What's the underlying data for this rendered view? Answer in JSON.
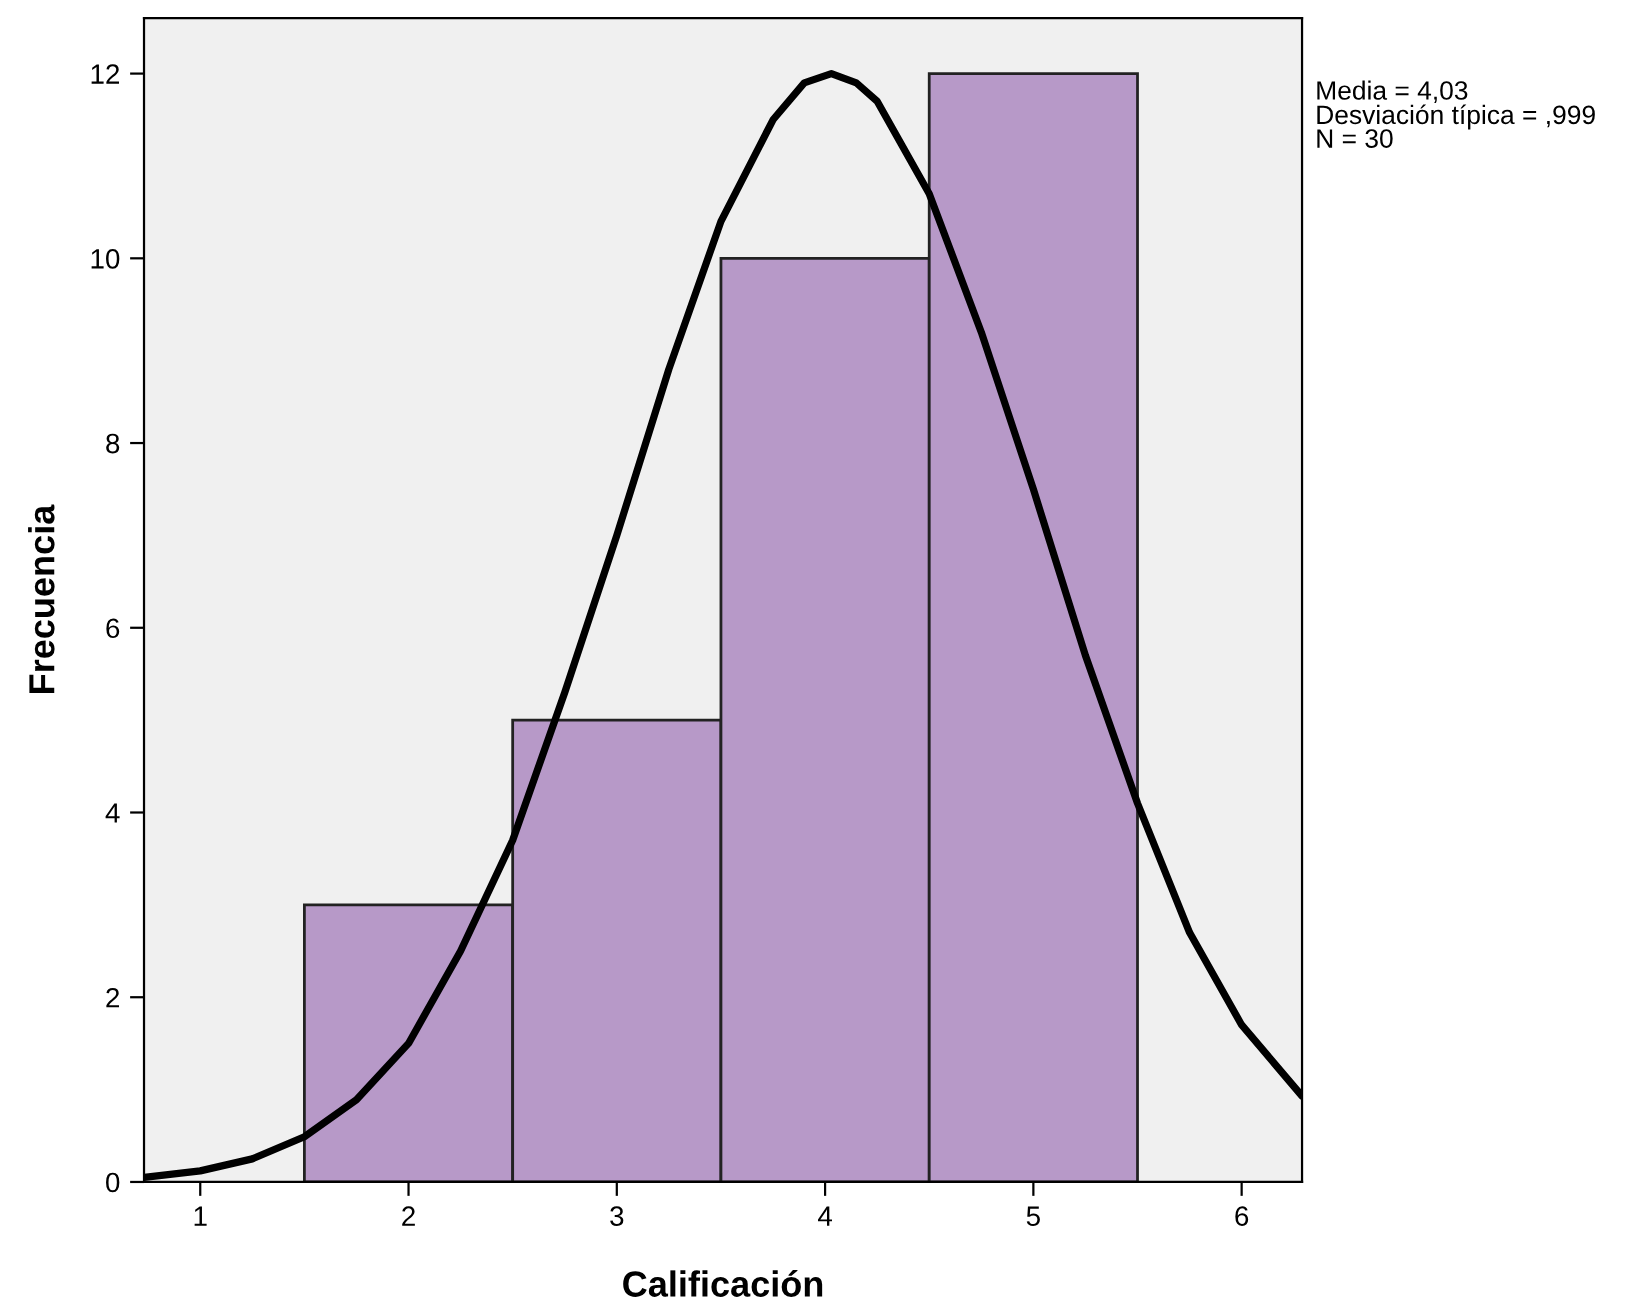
{
  "chart_data": {
    "type": "histogram",
    "xlabel": "Calificación",
    "ylabel": "Frecuencia",
    "annotations": [
      "Media = 4,03",
      "Desviación típica = ,999",
      "N = 30"
    ],
    "series": [
      {
        "bins": [
          1.5,
          2.5,
          3.5,
          4.5,
          5.5
        ],
        "values": [
          3,
          5,
          10,
          12
        ],
        "color": "#b799c8"
      },
      {
        "type": "line",
        "color": "#000000",
        "x": [
          0.73,
          1.0,
          1.25,
          1.5,
          1.75,
          2.0,
          2.25,
          2.5,
          2.75,
          3.0,
          3.25,
          3.5,
          3.75,
          3.9,
          4.03,
          4.15,
          4.25,
          4.5,
          4.75,
          5.0,
          5.25,
          5.5,
          5.75,
          6.0,
          6.29
        ],
        "values": [
          0.05,
          0.12,
          0.25,
          0.49,
          0.89,
          1.5,
          2.5,
          3.7,
          5.3,
          7.0,
          8.8,
          10.4,
          11.5,
          11.9,
          12.0,
          11.9,
          11.7,
          10.7,
          9.2,
          7.5,
          5.7,
          4.1,
          2.7,
          1.7,
          0.93
        ]
      }
    ],
    "xlim": [
      0.73,
      6.29
    ],
    "xticks": [
      1,
      2,
      3,
      4,
      5,
      6
    ],
    "ylim": [
      0,
      12.6
    ],
    "yticks": [
      0,
      2,
      4,
      6,
      8,
      10,
      12
    ],
    "grid": false
  }
}
